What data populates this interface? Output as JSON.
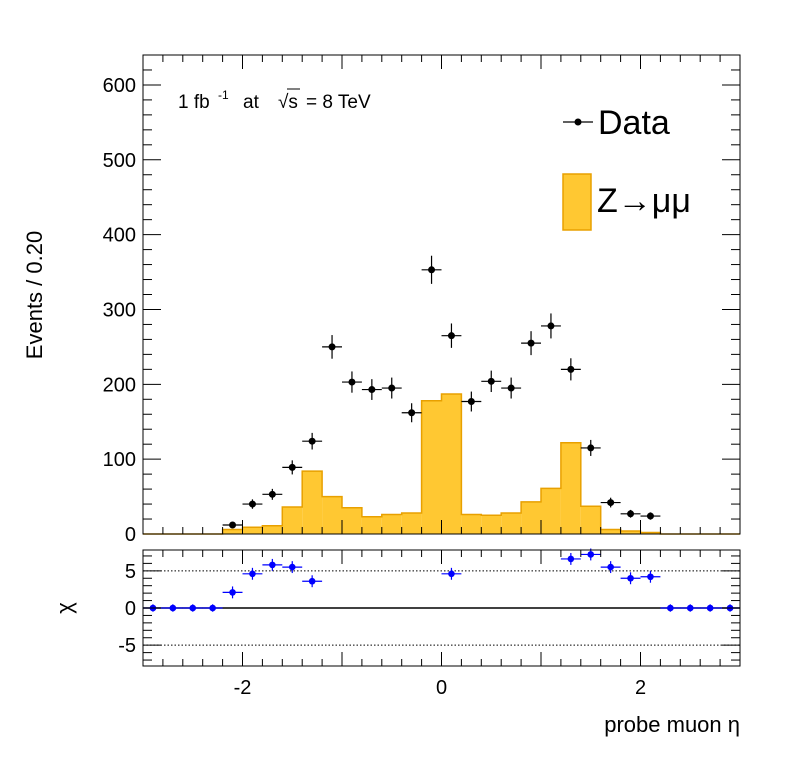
{
  "chart_data": [
    {
      "type": "bar",
      "panel": "main",
      "ylabel": "Events / 0.20",
      "xlim": [
        -3,
        3
      ],
      "ylim": [
        0,
        640
      ],
      "yticks": [
        0,
        100,
        200,
        300,
        400,
        500,
        600
      ],
      "annotation": {
        "lumi": "1 fb",
        "lumi_exp": "-1",
        "at": "at",
        "sqrt": "√s",
        "energy": "= 8 TeV"
      },
      "legend": {
        "placement": "top-right",
        "data_label": "Data",
        "mc_label": "Z→μμ"
      },
      "series": [
        {
          "name": "Z→μμ",
          "kind": "histogram",
          "color": "#FFC832",
          "edge_color": "#E8A000",
          "bin_edges": [
            -3.0,
            -2.8,
            -2.6,
            -2.4,
            -2.2,
            -2.0,
            -1.8,
            -1.6,
            -1.4,
            -1.2,
            -1.0,
            -0.8,
            -0.6,
            -0.4,
            -0.2,
            0.0,
            0.2,
            0.4,
            0.6,
            0.8,
            1.0,
            1.2,
            1.4,
            1.6,
            1.8,
            2.0,
            2.2,
            2.4,
            2.6,
            2.8,
            3.0
          ],
          "values": [
            0,
            0,
            0,
            0,
            6,
            9,
            11,
            36,
            84,
            50,
            35,
            23,
            26,
            28,
            178,
            187,
            26,
            25,
            28,
            43,
            61,
            122,
            37,
            6,
            4,
            2,
            0,
            0,
            0,
            0
          ]
        },
        {
          "name": "Data",
          "kind": "points",
          "color": "#000000",
          "x": [
            -2.1,
            -1.9,
            -1.7,
            -1.5,
            -1.3,
            -1.1,
            -0.9,
            -0.7,
            -0.5,
            -0.3,
            -0.1,
            0.1,
            0.3,
            0.5,
            0.7,
            0.9,
            1.1,
            1.3,
            1.5,
            1.7,
            1.9,
            2.1
          ],
          "y": [
            12,
            40,
            53,
            89,
            124,
            250,
            203,
            193,
            195,
            162,
            353,
            265,
            177,
            204,
            195,
            255,
            278,
            220,
            115,
            42,
            27,
            24
          ],
          "yerr": [
            3.5,
            6.3,
            7.3,
            9.4,
            11.1,
            15.8,
            14.2,
            13.9,
            14.0,
            12.7,
            18.8,
            16.3,
            13.3,
            14.3,
            14.0,
            16.0,
            16.7,
            14.8,
            10.7,
            6.5,
            5.2,
            4.9
          ]
        }
      ]
    },
    {
      "type": "scatter",
      "panel": "ratio",
      "xlabel": "probe muon η",
      "ylabel": "χ",
      "xlim": [
        -3,
        3
      ],
      "ylim": [
        -7.8,
        7.8
      ],
      "xticks": [
        -2,
        0,
        2
      ],
      "yticks": [
        -5,
        0,
        5
      ],
      "tick_labels_x": [
        "-2",
        "0",
        "2"
      ],
      "tick_labels_y": [
        "-5",
        "0",
        "5"
      ],
      "series": [
        {
          "name": "χ",
          "color": "#0000FF",
          "x": [
            -2.9,
            -2.7,
            -2.5,
            -2.3,
            -2.1,
            -1.9,
            -1.7,
            -1.5,
            -1.3,
            0.1,
            1.3,
            1.5,
            1.7,
            1.9,
            2.1,
            2.3,
            2.5,
            2.7,
            2.9
          ],
          "y": [
            0,
            0,
            0,
            0,
            2.1,
            4.6,
            5.8,
            5.5,
            3.6,
            4.6,
            6.6,
            7.2,
            5.5,
            4.0,
            4.2,
            0,
            0,
            0,
            0
          ],
          "yerr": [
            0.5,
            0.5,
            0.5,
            0.5,
            0.8,
            0.8,
            0.8,
            0.8,
            0.8,
            0.8,
            0.8,
            0.8,
            0.8,
            0.8,
            0.8,
            0.5,
            0.5,
            0.5,
            0.5
          ]
        }
      ]
    }
  ]
}
